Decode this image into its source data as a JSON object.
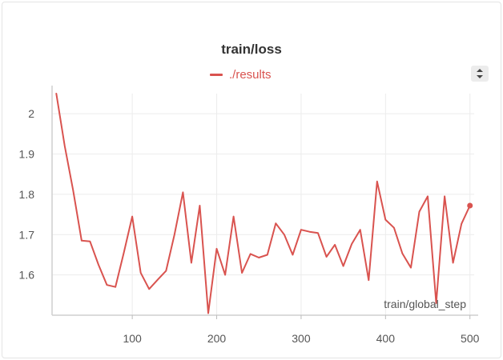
{
  "chart_data": {
    "type": "line",
    "title": "train/loss",
    "xlabel": "train/global_step",
    "ylabel": "",
    "xlim": [
      5,
      505
    ],
    "ylim": [
      1.5,
      2.05
    ],
    "xticks": [
      100,
      200,
      300,
      400,
      500
    ],
    "yticks": [
      1.6,
      1.7,
      1.8,
      1.9,
      2
    ],
    "xtick_labels": [
      "100",
      "200",
      "300",
      "400",
      "500"
    ],
    "ytick_labels": [
      "1.6",
      "1.7",
      "1.8",
      "1.9",
      "2"
    ],
    "grid": true,
    "legend_position": "top-center",
    "series": [
      {
        "name": "./results",
        "color": "#d9534f",
        "x": [
          10,
          20,
          30,
          40,
          50,
          60,
          70,
          80,
          90,
          100,
          110,
          120,
          130,
          140,
          150,
          160,
          170,
          180,
          190,
          200,
          210,
          220,
          230,
          240,
          250,
          260,
          270,
          280,
          290,
          300,
          310,
          320,
          330,
          340,
          350,
          360,
          370,
          380,
          390,
          400,
          410,
          420,
          430,
          440,
          450,
          460,
          470,
          480,
          490,
          500
        ],
        "y": [
          2.05,
          1.92,
          1.81,
          1.685,
          1.683,
          1.625,
          1.575,
          1.57,
          1.655,
          1.745,
          1.605,
          1.565,
          1.588,
          1.61,
          1.7,
          1.805,
          1.63,
          1.772,
          1.505,
          1.665,
          1.6,
          1.745,
          1.605,
          1.652,
          1.643,
          1.65,
          1.728,
          1.7,
          1.65,
          1.712,
          1.707,
          1.704,
          1.645,
          1.675,
          1.622,
          1.677,
          1.712,
          1.587,
          1.832,
          1.737,
          1.717,
          1.653,
          1.618,
          1.757,
          1.795,
          1.53,
          1.795,
          1.63,
          1.727,
          1.772
        ]
      }
    ]
  },
  "controls": {
    "sort_icon": "sort-updown-icon"
  }
}
